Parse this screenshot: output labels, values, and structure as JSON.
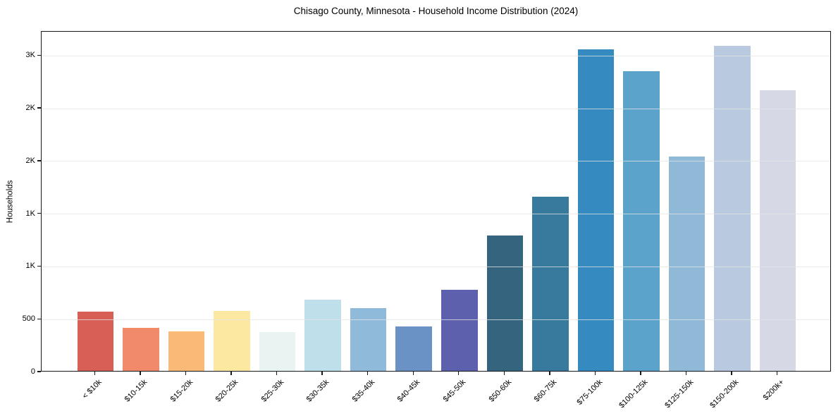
{
  "chart_data": {
    "type": "bar",
    "title": "Chisago County, Minnesota - Household Income Distribution (2024)",
    "xlabel": "",
    "ylabel": "Households",
    "categories": [
      "< $10k",
      "$10-15k",
      "$15-20k",
      "$20-25k",
      "$25-30k",
      "$30-35k",
      "$35-40k",
      "$40-45k",
      "$45-50k",
      "$50-60k",
      "$60-75k",
      "$75-100k",
      "$100-125k",
      "$125-150k",
      "$150-200k",
      "$200k+"
    ],
    "values": [
      560,
      405,
      375,
      570,
      370,
      675,
      595,
      420,
      770,
      1285,
      1650,
      3050,
      2840,
      2030,
      3080,
      2660
    ],
    "bar_colors": [
      "#d75f55",
      "#f18a6a",
      "#fbb977",
      "#fde8a2",
      "#e9f4f2",
      "#bfe0ea",
      "#90bada",
      "#6a92c4",
      "#5d60ac",
      "#35647e",
      "#38799e",
      "#358ac0",
      "#5ba3ca",
      "#90b8d7",
      "#b9c9df",
      "#d6d8e5"
    ],
    "ylim": [
      0,
      3230
    ],
    "yticks": [
      {
        "value": 0,
        "label": "0"
      },
      {
        "value": 500,
        "label": "500"
      },
      {
        "value": 1000,
        "label": "1K"
      },
      {
        "value": 1500,
        "label": "1K"
      },
      {
        "value": 2000,
        "label": "2K"
      },
      {
        "value": 2500,
        "label": "2K"
      },
      {
        "value": 3000,
        "label": "3K"
      }
    ],
    "grid": "horizontal",
    "grid_color": "#e4e4e4",
    "axis_color": "#15181c",
    "legend": "none"
  }
}
